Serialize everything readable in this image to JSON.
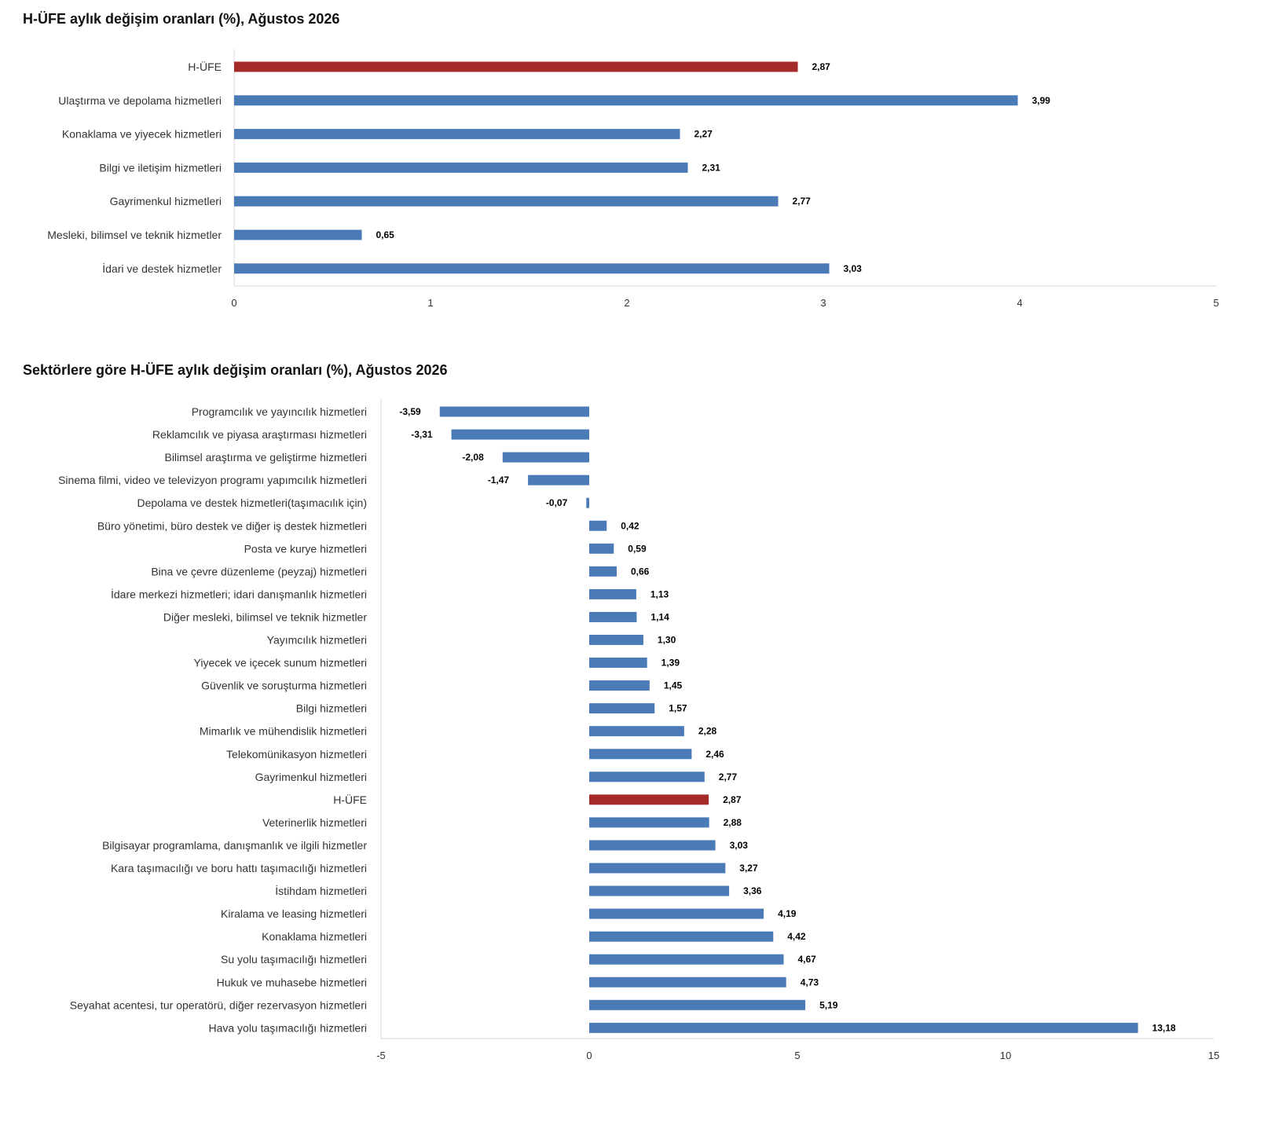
{
  "colors": {
    "bar": "#4a7bb7",
    "highlight": "#a52a2a",
    "axis": "#d9d9d9"
  },
  "chart_data": [
    {
      "type": "bar",
      "orientation": "horizontal",
      "title": "H-ÜFE aylık değişim oranları (%), Ağustos 2026",
      "categories": [
        "H-ÜFE",
        "Ulaştırma ve depolama hizmetleri",
        "Konaklama ve yiyecek hizmetleri",
        "Bilgi ve iletişim hizmetleri",
        "Gayrimenkul hizmetleri",
        "Mesleki, bilimsel ve teknik hizmetler",
        "İdari ve destek hizmetler"
      ],
      "values": [
        2.87,
        3.99,
        2.27,
        2.31,
        2.77,
        0.65,
        3.03
      ],
      "value_labels": [
        "2,87",
        "3,99",
        "2,27",
        "2,31",
        "2,77",
        "0,65",
        "3,03"
      ],
      "highlight": [
        "H-ÜFE"
      ],
      "xlim": [
        0,
        5
      ],
      "xticks": [
        "0",
        "1",
        "2",
        "3",
        "4",
        "5"
      ],
      "grid": false
    },
    {
      "type": "bar",
      "orientation": "horizontal",
      "title": "Sektörlere göre H-ÜFE aylık değişim oranları (%), Ağustos 2026",
      "categories": [
        "Programcılık ve yayıncılık hizmetleri",
        "Reklamcılık ve piyasa araştırması hizmetleri",
        "Bilimsel araştırma ve geliştirme hizmetleri",
        "Sinema filmi, video ve televizyon programı yapımcılık hizmetleri",
        "Depolama ve destek hizmetleri(taşımacılık için)",
        "Büro yönetimi, büro destek ve diğer iş destek hizmetleri",
        "Posta ve kurye hizmetleri",
        "Bina ve çevre düzenleme (peyzaj) hizmetleri",
        "İdare merkezi hizmetleri; idari danışmanlık hizmetleri",
        "Diğer mesleki, bilimsel ve teknik hizmetler",
        "Yayımcılık hizmetleri",
        "Yiyecek ve içecek sunum hizmetleri",
        "Güvenlik ve soruşturma hizmetleri",
        "Bilgi hizmetleri",
        "Mimarlık ve mühendislik hizmetleri",
        "Telekomünikasyon hizmetleri",
        "Gayrimenkul hizmetleri",
        "H-ÜFE",
        "Veterinerlik hizmetleri",
        "Bilgisayar programlama, danışmanlık ve ilgili hizmetler",
        "Kara taşımacılığı ve boru hattı taşımacılığı hizmetleri",
        "İstihdam hizmetleri",
        "Kiralama ve leasing hizmetleri",
        "Konaklama hizmetleri",
        "Su yolu taşımacılığı hizmetleri",
        "Hukuk ve muhasebe hizmetleri",
        "Seyahat acentesi, tur operatörü, diğer rezervasyon hizmetleri",
        "Hava yolu taşımacılığı hizmetleri"
      ],
      "values": [
        -3.59,
        -3.31,
        -2.08,
        -1.47,
        -0.07,
        0.42,
        0.59,
        0.66,
        1.13,
        1.14,
        1.3,
        1.39,
        1.45,
        1.57,
        2.28,
        2.46,
        2.77,
        2.87,
        2.88,
        3.03,
        3.27,
        3.36,
        4.19,
        4.42,
        4.67,
        4.73,
        5.19,
        13.18
      ],
      "value_labels": [
        "-3,59",
        "-3,31",
        "-2,08",
        "-1,47",
        "-0,07",
        "0,42",
        "0,59",
        "0,66",
        "1,13",
        "1,14",
        "1,30",
        "1,39",
        "1,45",
        "1,57",
        "2,28",
        "2,46",
        "2,77",
        "2,87",
        "2,88",
        "3,03",
        "3,27",
        "3,36",
        "4,19",
        "4,42",
        "4,67",
        "4,73",
        "5,19",
        "13,18"
      ],
      "highlight": [
        "H-ÜFE"
      ],
      "xlim": [
        -5,
        15
      ],
      "xticks": [
        "-5",
        "0",
        "5",
        "10",
        "15"
      ],
      "grid": false
    }
  ]
}
